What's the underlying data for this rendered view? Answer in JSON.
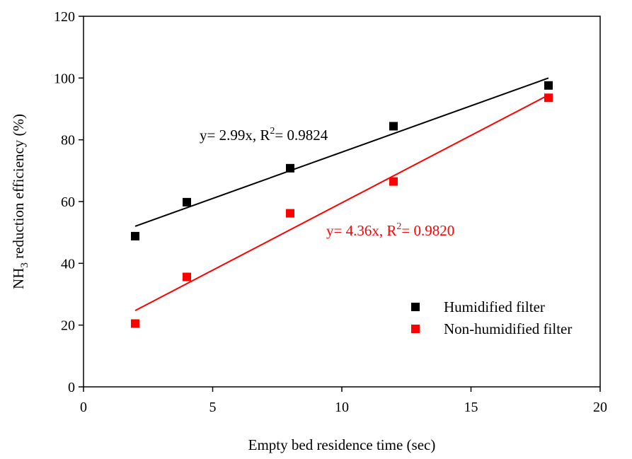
{
  "chart_data": {
    "type": "scatter",
    "xlabel": "Empty bed residence time (sec)",
    "ylabel": {
      "pre": "NH",
      "sub": "3",
      "post": " reduction efficiency (%)"
    },
    "xlim": [
      0,
      20
    ],
    "ylim": [
      0,
      120
    ],
    "x_ticks": [
      0,
      5,
      10,
      15,
      20
    ],
    "y_ticks": [
      0,
      20,
      40,
      60,
      80,
      100,
      120
    ],
    "grid": false,
    "legend_position": "bottom-right",
    "series": [
      {
        "name": "Humidified filter",
        "color": "#000000",
        "marker": "square",
        "x": [
          2,
          4,
          8,
          12,
          18
        ],
        "y": [
          48.8,
          59.8,
          70.8,
          84.4,
          97.6
        ],
        "fit_line": {
          "x": [
            2,
            18
          ],
          "y": [
            52.0,
            100.0
          ]
        },
        "equation": {
          "pre": "y= 2.99x, R",
          "sup": "2",
          "post": "= 0.9824"
        }
      },
      {
        "name": "Non-humidified filter",
        "color": "#ff0000",
        "marker": "square",
        "x": [
          2,
          4,
          8,
          12,
          18
        ],
        "y": [
          20.5,
          35.6,
          56.2,
          66.5,
          93.6
        ],
        "fit_line": {
          "x": [
            2,
            18
          ],
          "y": [
            24.7,
            94.5
          ]
        },
        "equation": {
          "pre": "y= 4.36x, R",
          "sup": "2",
          "post": "= 0.9820"
        }
      }
    ]
  }
}
